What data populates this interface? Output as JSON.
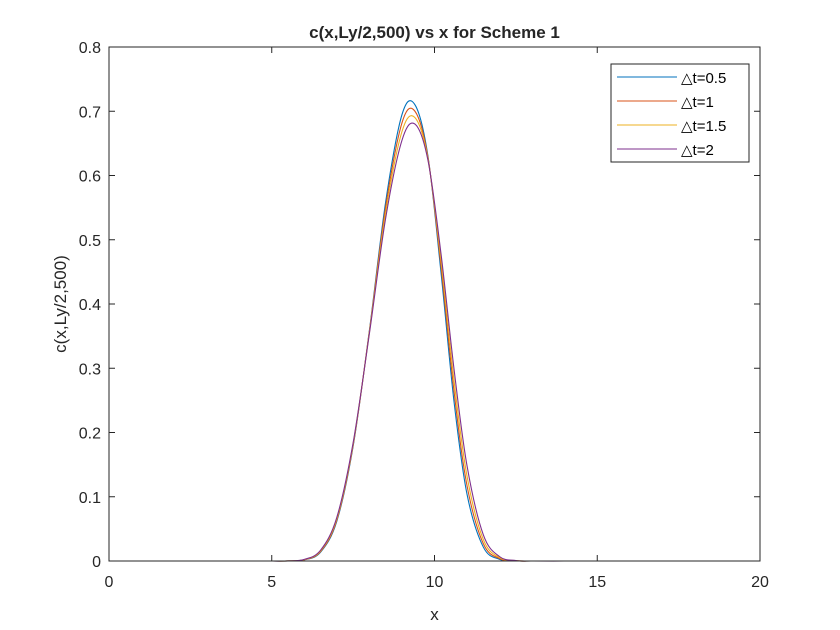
{
  "chart_data": {
    "type": "line",
    "title": "c(x,Ly/2,500) vs x for Scheme 1",
    "xlabel": "x",
    "ylabel": "c(x,Ly/2,500)",
    "xlim": [
      0,
      20
    ],
    "ylim": [
      0,
      0.8
    ],
    "xticks": [
      0,
      5,
      10,
      15,
      20
    ],
    "yticks": [
      0,
      0.1,
      0.2,
      0.3,
      0.4,
      0.5,
      0.6,
      0.7,
      0.8
    ],
    "xtick_labels": [
      "0",
      "5",
      "10",
      "15",
      "20"
    ],
    "ytick_labels": [
      "0",
      "0.1",
      "0.2",
      "0.3",
      "0.4",
      "0.5",
      "0.6",
      "0.7",
      "0.8"
    ],
    "grid": false,
    "legend_position": "top-right",
    "x": [
      0,
      1,
      2,
      3,
      4,
      5,
      5.5,
      6,
      6.5,
      7,
      7.5,
      8,
      8.5,
      9,
      9.4,
      9.8,
      10.2,
      10.6,
      11,
      11.5,
      12,
      12.5,
      13,
      14,
      15,
      16,
      17,
      18,
      19,
      20
    ],
    "series": [
      {
        "name": "△t=0.5",
        "color": "#0072bd",
        "values": [
          0,
          0,
          0,
          0,
          0,
          0,
          0.0001,
          0.0018,
          0.0138,
          0.0622,
          0.1785,
          0.359,
          0.559,
          0.6946,
          0.71,
          0.6299,
          0.4489,
          0.248,
          0.1037,
          0.0217,
          0.0026,
          0.0002,
          0,
          0,
          0,
          0,
          0,
          0,
          0,
          0
        ]
      },
      {
        "name": "△t=1",
        "color": "#d95319",
        "values": [
          0,
          0,
          0,
          0,
          0,
          0,
          0.0001,
          0.002,
          0.0147,
          0.064,
          0.1803,
          0.3576,
          0.5511,
          0.6818,
          0.7,
          0.6278,
          0.4584,
          0.264,
          0.117,
          0.027,
          0.0037,
          0.0003,
          0,
          0,
          0,
          0,
          0,
          0,
          0,
          0
        ]
      },
      {
        "name": "△t=1.5",
        "color": "#edb120",
        "values": [
          0,
          0,
          0,
          0,
          0,
          0,
          0.0002,
          0.0022,
          0.0158,
          0.066,
          0.1821,
          0.3559,
          0.5425,
          0.6683,
          0.69,
          0.6256,
          0.4682,
          0.2809,
          0.1318,
          0.0334,
          0.0051,
          0.0005,
          0,
          0,
          0,
          0,
          0,
          0,
          0,
          0
        ]
      },
      {
        "name": "△t=2",
        "color": "#7e2f8e",
        "values": [
          0,
          0,
          0,
          0,
          0,
          0,
          0.0002,
          0.0025,
          0.0168,
          0.0681,
          0.184,
          0.3541,
          0.5338,
          0.6547,
          0.68,
          0.6235,
          0.4782,
          0.2986,
          0.148,
          0.0408,
          0.0068,
          0.0007,
          0,
          0,
          0,
          0,
          0,
          0,
          0,
          0
        ]
      }
    ]
  }
}
